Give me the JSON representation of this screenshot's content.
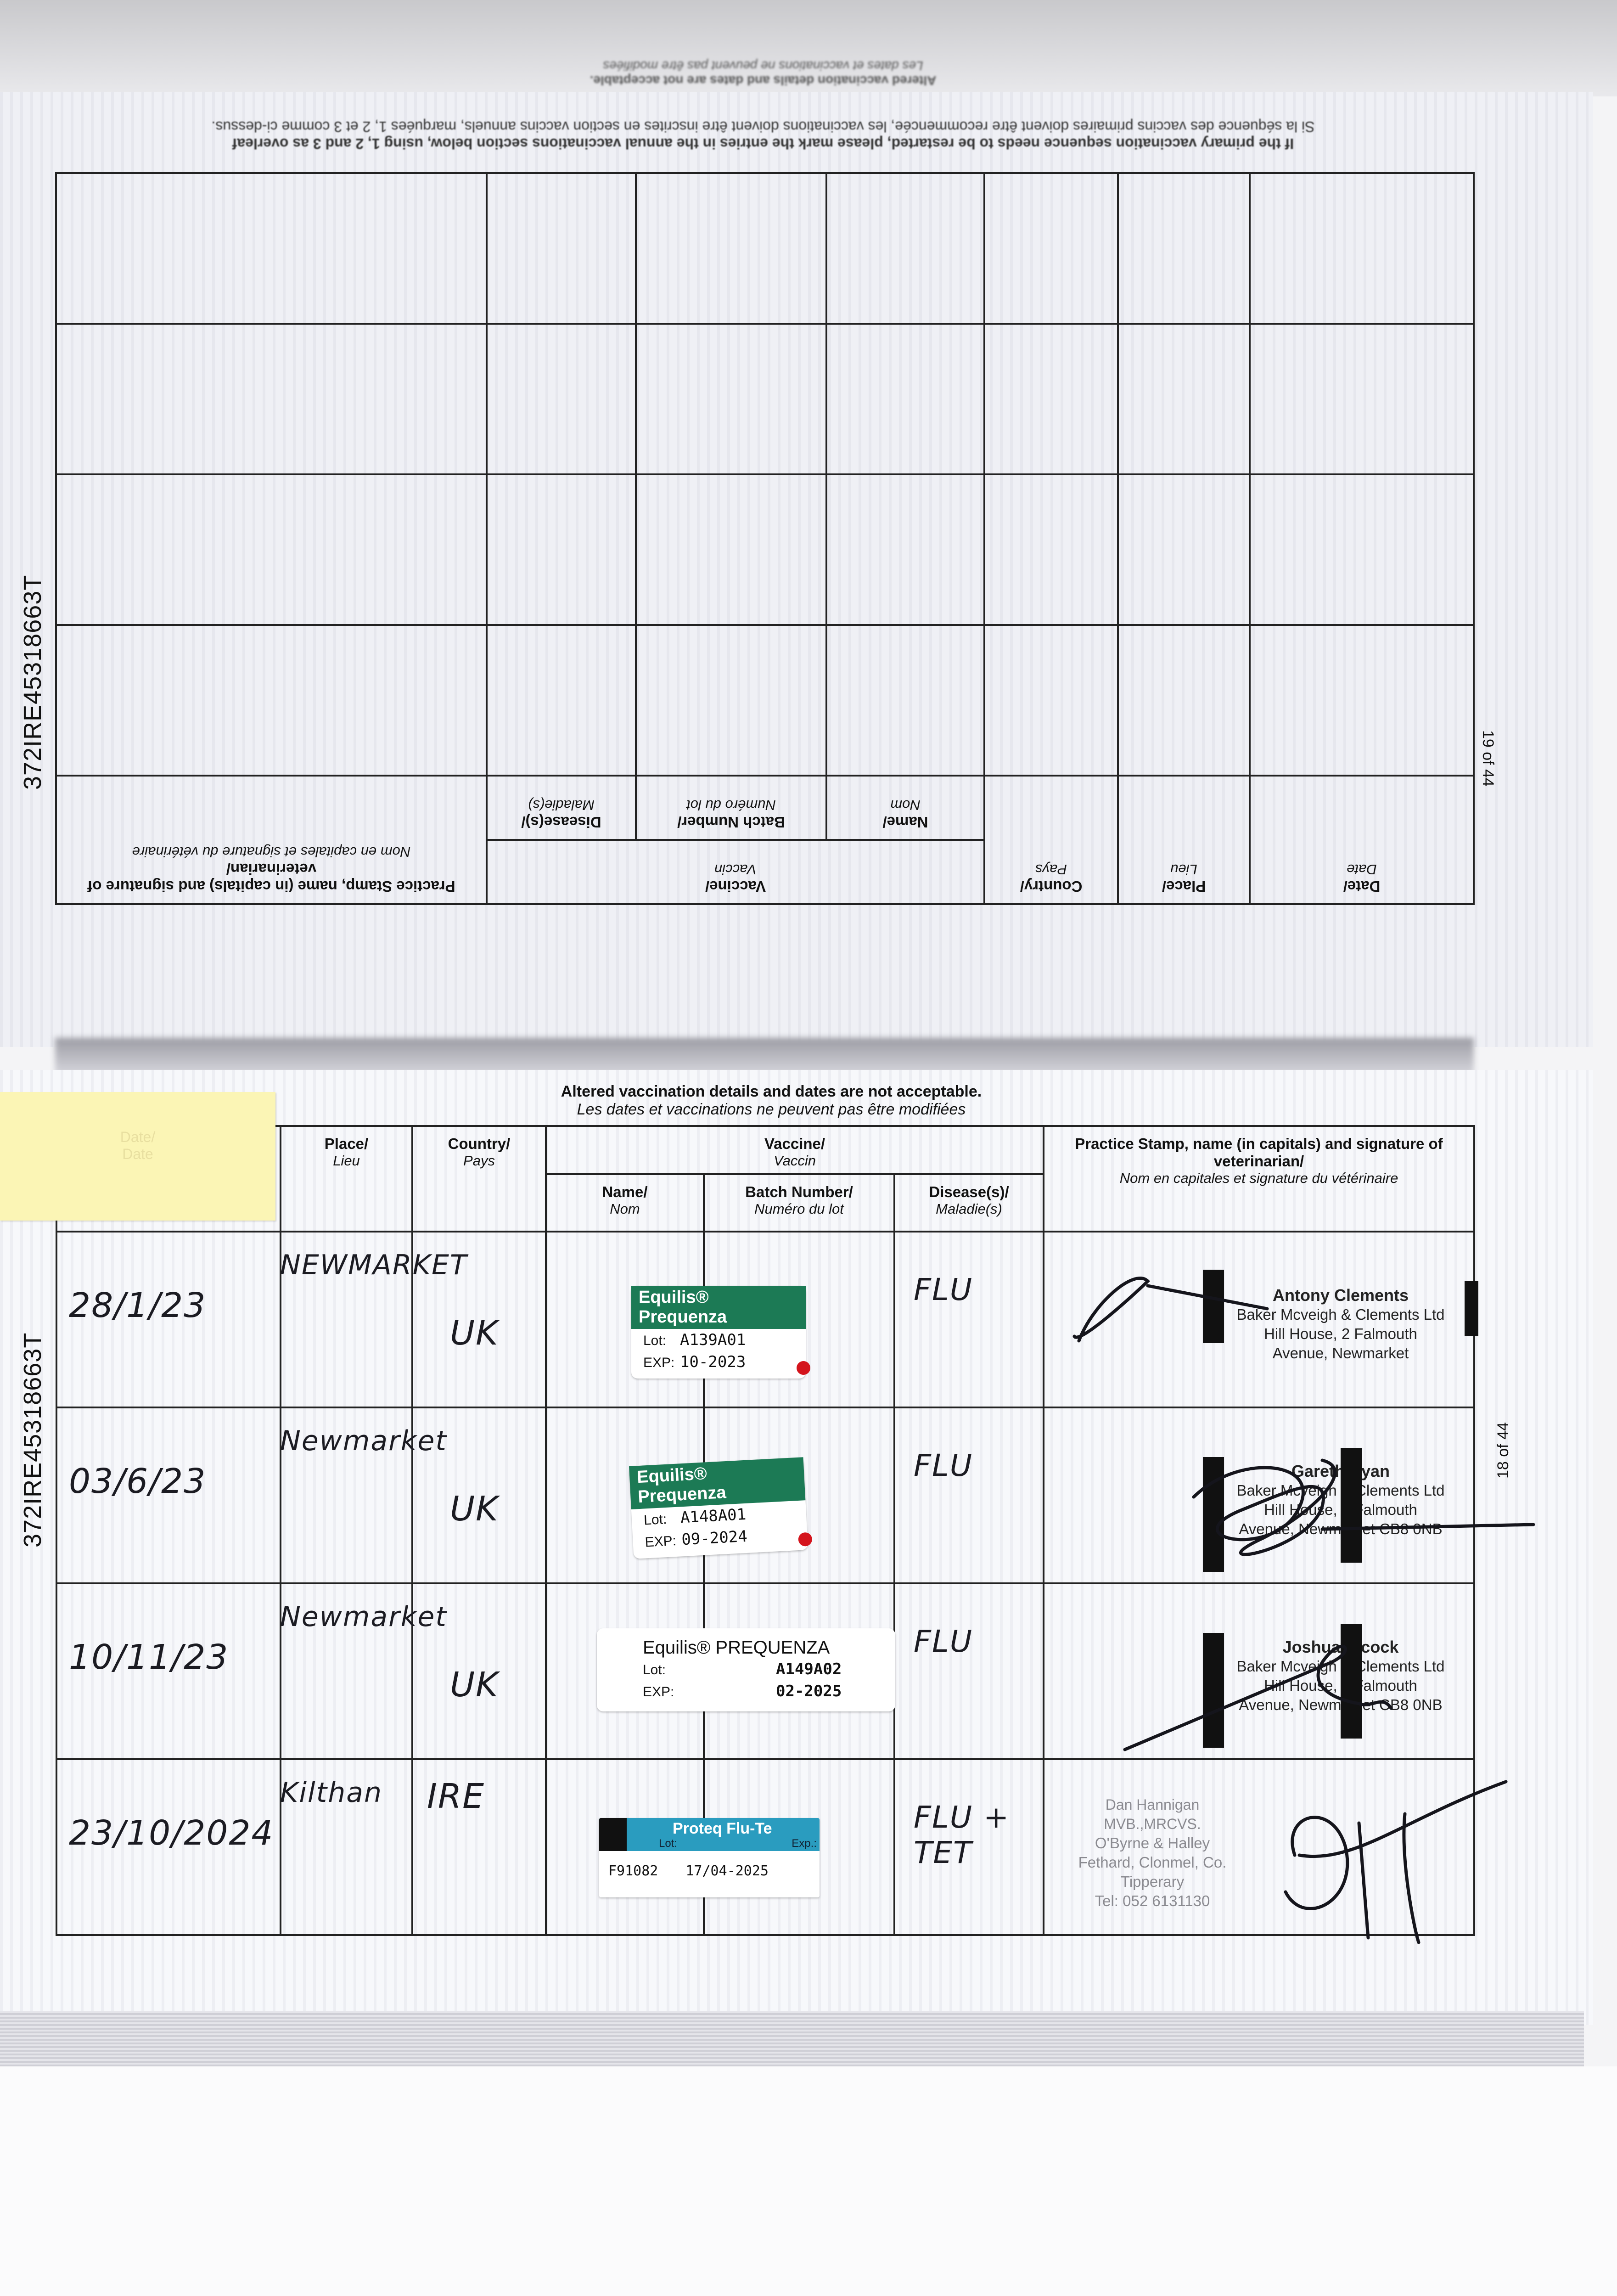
{
  "document": {
    "id_code": "372IRE45318663T"
  },
  "headers": {
    "date": {
      "en": "Date/",
      "fr": "Date"
    },
    "place": {
      "en": "Place/",
      "fr": "Lieu"
    },
    "country": {
      "en": "Country/",
      "fr": "Pays"
    },
    "vaccine": {
      "en": "Vaccine/",
      "fr": "Vaccin"
    },
    "name": {
      "en": "Name/",
      "fr": "Nom"
    },
    "batch": {
      "en": "Batch Number/",
      "fr": "Numéro du lot"
    },
    "disease": {
      "en": "Disease(s)/",
      "fr": "Maladie(s)"
    },
    "practice": {
      "en": "Practice Stamp, name (in capitals) and signature of veterinarian/",
      "fr": "Nom en capitales et signature du vétérinaire"
    }
  },
  "top_page": {
    "orientation": "upside-down",
    "page_number": "19 of 44",
    "restart_en": "If the primary vaccination sequence needs to be restarted, please mark the entries in the annual vaccinations section below, using 1, 2 and 3 as overleaf",
    "restart_fr": "Si la séquence des vaccins primaires doivent être recommencée, les vaccinations doivent être inscrites en section vaccins annuels, marquées 1, 2 et 3 comme ci-dessus.",
    "notice_en": "Altered vaccination details and dates are not acceptable.",
    "notice_fr": "Les dates et vaccinations ne peuvent pas être modifiées",
    "empty_rows": 4
  },
  "bottom_page": {
    "page_number": "18 of 44",
    "notice_en": "Altered vaccination details and dates are not acceptable.",
    "notice_fr": "Les dates et vaccinations ne peuvent pas être modifiées",
    "sticky_note_color": "#fbf5b5",
    "rows": [
      {
        "date": "28/1/23",
        "place": "NEWMARKET",
        "country": "UK",
        "vaccine": {
          "brand": "Equilis® Prequenza",
          "lot_label": "Lot:",
          "lot": "A139A01",
          "exp_label": "EXP:",
          "exp": "10-2023",
          "style": "green-band"
        },
        "disease": "FLU",
        "stamp": {
          "name": "Antony Clements",
          "lines": [
            "Baker Mcveigh & Clements Ltd",
            "Hill House, 2 Falmouth",
            "Avenue, Newmarket"
          ]
        }
      },
      {
        "date": "03/6/23",
        "place": "Newmarket",
        "country": "UK",
        "vaccine": {
          "brand": "Equilis® Prequenza",
          "lot_label": "Lot:",
          "lot": "A148A01",
          "exp_label": "EXP:",
          "exp": "09-2024",
          "style": "green-band"
        },
        "disease": "FLU",
        "stamp": {
          "name": "Gareth Ryan",
          "lines": [
            "Baker Mcveigh & Clements Ltd",
            "Hill House, 2 Falmouth",
            "Avenue, Newmarket CB8 0NB"
          ]
        }
      },
      {
        "date": "10/11/23",
        "place": "Newmarket",
        "country": "UK",
        "vaccine": {
          "brand": "Equilis® PREQUENZA",
          "lot_label": "Lot:",
          "lot": "A149A02",
          "exp_label": "EXP:",
          "exp": "02-2025",
          "style": "plain"
        },
        "disease": "FLU",
        "stamp": {
          "name": "Joshua Alcock",
          "lines": [
            "Baker Mcveigh & Clements Ltd",
            "Hill House, 2 Falmouth",
            "Avenue, Newmarket CB8 0NB"
          ]
        }
      },
      {
        "date": "23/10/2024",
        "place": "Kilthan",
        "country": "IRE",
        "vaccine": {
          "brand": "Proteq Flu-Te",
          "lot_label": "Lot:",
          "lot": "F91082",
          "exp_label": "Exp.:",
          "exp": "17/04-2025",
          "style": "blue-band"
        },
        "disease": "FLU + TET",
        "stamp": {
          "name": "Dan Hannigan MVB.,MRCVS.",
          "lines": [
            "O'Byrne & Halley",
            "Fethard, Clonmel, Co. Tipperary",
            "Tel: 052 6131130"
          ]
        }
      }
    ]
  },
  "colors": {
    "equilis_band": "#1c7a55",
    "proteq_band": "#2a9cbf",
    "ink": "#1b1b22",
    "sticky": "#fbf5b5"
  }
}
